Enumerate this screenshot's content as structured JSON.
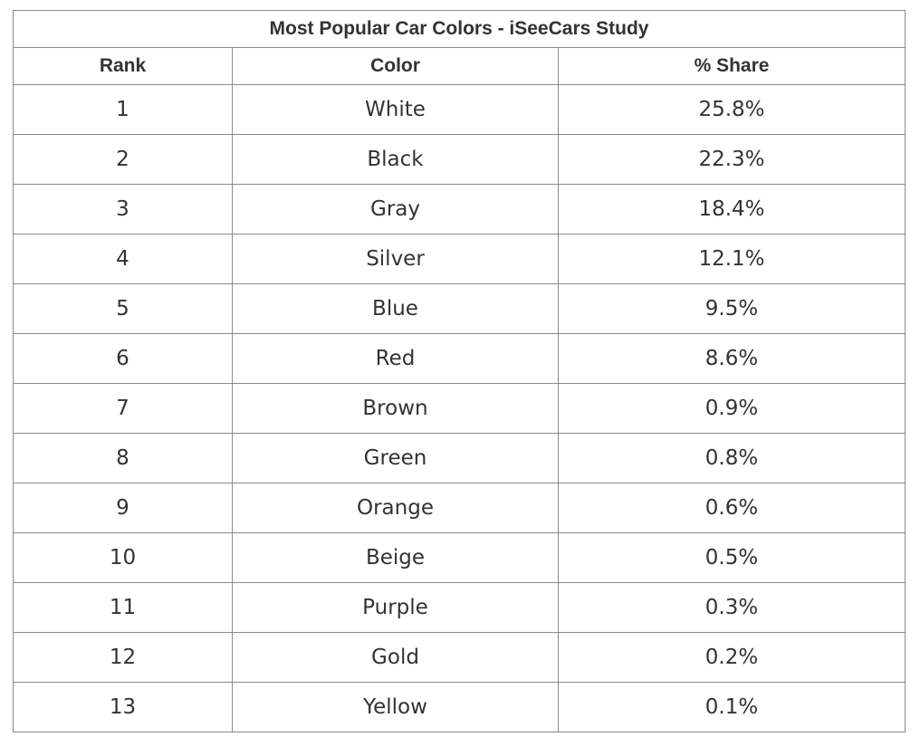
{
  "chart_data": {
    "type": "table",
    "title": "Most Popular Car Colors - iSeeCars Study",
    "columns": [
      "Rank",
      "Color",
      "% Share"
    ],
    "rows": [
      [
        "1",
        "White",
        "25.8%"
      ],
      [
        "2",
        "Black",
        "22.3%"
      ],
      [
        "3",
        "Gray",
        "18.4%"
      ],
      [
        "4",
        "Silver",
        "12.1%"
      ],
      [
        "5",
        "Blue",
        "9.5%"
      ],
      [
        "6",
        "Red",
        "8.6%"
      ],
      [
        "7",
        "Brown",
        "0.9%"
      ],
      [
        "8",
        "Green",
        "0.8%"
      ],
      [
        "9",
        "Orange",
        "0.6%"
      ],
      [
        "10",
        "Beige",
        "0.5%"
      ],
      [
        "11",
        "Purple",
        "0.3%"
      ],
      [
        "12",
        "Gold",
        "0.2%"
      ],
      [
        "13",
        "Yellow",
        "0.1%"
      ]
    ]
  },
  "colors": {
    "text": "#333333",
    "border": "#8a8a8a",
    "background": "#ffffff"
  }
}
